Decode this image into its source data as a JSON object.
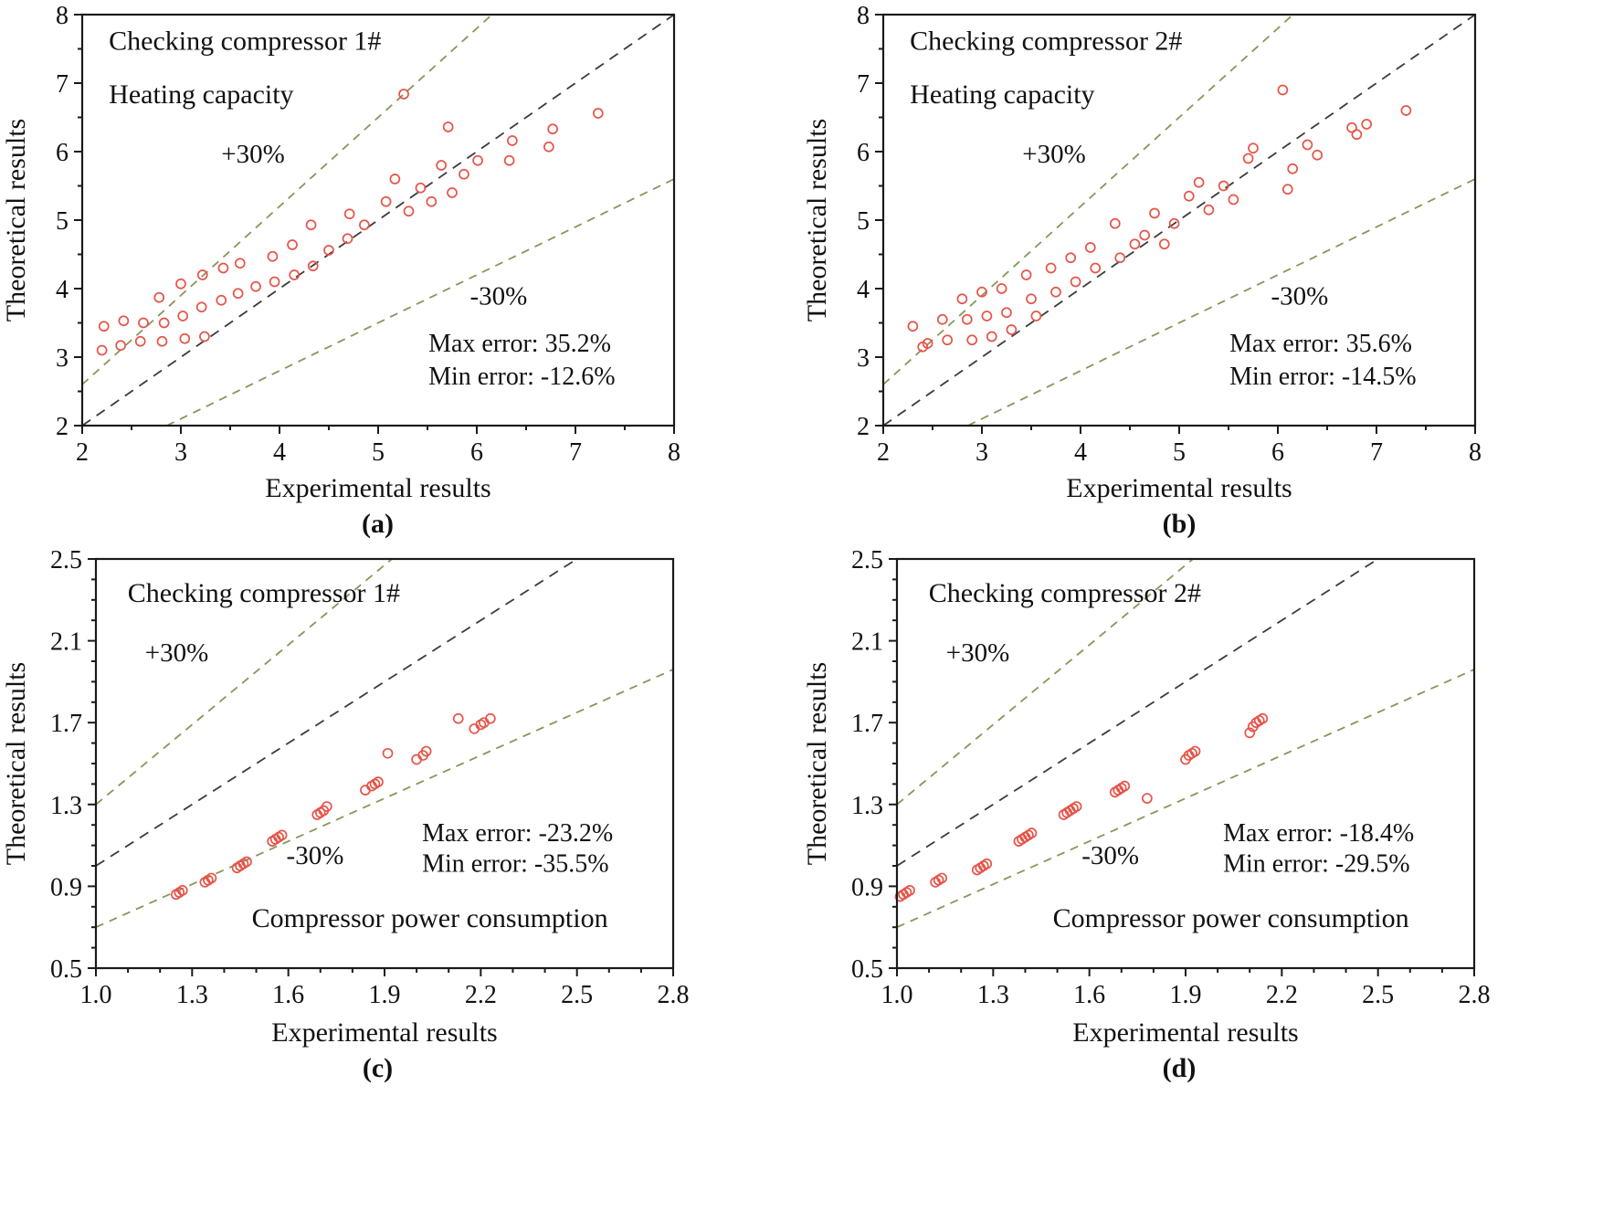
{
  "chart_data": [
    {
      "type": "scatter",
      "panel": "a",
      "caption": "(a)",
      "xlabel": "Experimental results",
      "ylabel": "Theoretical results",
      "xlim": [
        2,
        8
      ],
      "ylim": [
        2,
        8
      ],
      "xticks": [
        2,
        3,
        4,
        5,
        6,
        7,
        8
      ],
      "xtick_labels": [
        "2",
        "3",
        "4",
        "5",
        "6",
        "7",
        "8"
      ],
      "xminor": [
        2.5,
        3.5,
        4.5,
        5.5,
        6.5,
        7.5
      ],
      "yticks": [
        2,
        3,
        4,
        5,
        6,
        7,
        8
      ],
      "ytick_labels": [
        "2",
        "3",
        "4",
        "5",
        "6",
        "7",
        "8"
      ],
      "yminor": [
        2.5,
        3.5,
        4.5,
        5.5,
        6.5,
        7.5
      ],
      "ref_lines": [
        {
          "name": "identity",
          "slope": 1.0,
          "color": "#3b3b3b",
          "dash": "11 8"
        },
        {
          "name": "plus-30-line",
          "slope": 1.3,
          "color": "#86975a",
          "dash": "9 7"
        },
        {
          "name": "minus-30-line",
          "slope": 0.7,
          "color": "#86975a",
          "dash": "9 7"
        }
      ],
      "labels": [
        {
          "name": "title",
          "text": "Checking compressor 1#",
          "fx": 0.045,
          "fy": 0.085,
          "size": 30
        },
        {
          "name": "quantity",
          "text": "Heating capacity",
          "fx": 0.045,
          "fy": 0.215,
          "size": 30
        },
        {
          "name": "plus-30-label",
          "text": "+30%",
          "fx": 0.235,
          "fy": 0.36,
          "size": 29
        },
        {
          "name": "minus-30-label",
          "text": "-30%",
          "fx": 0.655,
          "fy": 0.705,
          "size": 29
        },
        {
          "name": "max-error",
          "text": "Max error:  35.2%",
          "fx": 0.585,
          "fy": 0.82,
          "size": 28
        },
        {
          "name": "min-error",
          "text": "Min error:  -12.6%",
          "fx": 0.585,
          "fy": 0.9,
          "size": 28
        }
      ],
      "style": {
        "marker_color": "#e65449",
        "axis_color": "#1a1a1a",
        "text_color": "#111111"
      },
      "points": [
        [
          2.2,
          3.1
        ],
        [
          2.22,
          3.45
        ],
        [
          2.39,
          3.17
        ],
        [
          2.42,
          3.53
        ],
        [
          2.59,
          3.23
        ],
        [
          2.62,
          3.5
        ],
        [
          2.78,
          3.87
        ],
        [
          2.81,
          3.23
        ],
        [
          2.83,
          3.5
        ],
        [
          3.0,
          4.07
        ],
        [
          3.02,
          3.6
        ],
        [
          3.04,
          3.27
        ],
        [
          3.21,
          3.73
        ],
        [
          3.22,
          4.2
        ],
        [
          3.24,
          3.3
        ],
        [
          3.41,
          3.83
        ],
        [
          3.43,
          4.3
        ],
        [
          3.58,
          3.93
        ],
        [
          3.6,
          4.37
        ],
        [
          3.76,
          4.03
        ],
        [
          3.93,
          4.47
        ],
        [
          3.95,
          4.1
        ],
        [
          4.13,
          4.64
        ],
        [
          4.15,
          4.2
        ],
        [
          4.32,
          4.93
        ],
        [
          4.34,
          4.33
        ],
        [
          4.5,
          4.56
        ],
        [
          4.69,
          4.73
        ],
        [
          4.71,
          5.09
        ],
        [
          4.86,
          4.93
        ],
        [
          5.08,
          5.27
        ],
        [
          5.17,
          5.6
        ],
        [
          5.26,
          6.84
        ],
        [
          5.31,
          5.13
        ],
        [
          5.43,
          5.47
        ],
        [
          5.54,
          5.27
        ],
        [
          5.64,
          5.8
        ],
        [
          5.71,
          6.36
        ],
        [
          5.75,
          5.4
        ],
        [
          5.87,
          5.67
        ],
        [
          6.01,
          5.87
        ],
        [
          6.33,
          5.87
        ],
        [
          6.36,
          6.16
        ],
        [
          6.73,
          6.07
        ],
        [
          6.77,
          6.33
        ],
        [
          7.23,
          6.56
        ]
      ]
    },
    {
      "type": "scatter",
      "panel": "b",
      "caption": "(b)",
      "xlabel": "Experimental results",
      "ylabel": "Theoretical results",
      "xlim": [
        2,
        8
      ],
      "ylim": [
        2,
        8
      ],
      "xticks": [
        2,
        3,
        4,
        5,
        6,
        7,
        8
      ],
      "xtick_labels": [
        "2",
        "3",
        "4",
        "5",
        "6",
        "7",
        "8"
      ],
      "xminor": [
        2.5,
        3.5,
        4.5,
        5.5,
        6.5,
        7.5
      ],
      "yticks": [
        2,
        3,
        4,
        5,
        6,
        7,
        8
      ],
      "ytick_labels": [
        "2",
        "3",
        "4",
        "5",
        "6",
        "7",
        "8"
      ],
      "yminor": [
        2.5,
        3.5,
        4.5,
        5.5,
        6.5,
        7.5
      ],
      "ref_lines": [
        {
          "name": "identity",
          "slope": 1.0,
          "color": "#3b3b3b",
          "dash": "11 8"
        },
        {
          "name": "plus-30-line",
          "slope": 1.3,
          "color": "#86975a",
          "dash": "9 7"
        },
        {
          "name": "minus-30-line",
          "slope": 0.7,
          "color": "#86975a",
          "dash": "9 7"
        }
      ],
      "labels": [
        {
          "name": "title",
          "text": "Checking compressor 2#",
          "fx": 0.045,
          "fy": 0.085,
          "size": 30
        },
        {
          "name": "quantity",
          "text": "Heating capacity",
          "fx": 0.045,
          "fy": 0.215,
          "size": 30
        },
        {
          "name": "plus-30-label",
          "text": "+30%",
          "fx": 0.235,
          "fy": 0.36,
          "size": 29
        },
        {
          "name": "minus-30-label",
          "text": "-30%",
          "fx": 0.655,
          "fy": 0.705,
          "size": 29
        },
        {
          "name": "max-error",
          "text": "Max error:  35.6%",
          "fx": 0.585,
          "fy": 0.82,
          "size": 28
        },
        {
          "name": "min-error",
          "text": "Min error:  -14.5%",
          "fx": 0.585,
          "fy": 0.9,
          "size": 28
        }
      ],
      "style": {
        "marker_color": "#e65449",
        "axis_color": "#1a1a1a",
        "text_color": "#111111"
      },
      "points": [
        [
          2.3,
          3.45
        ],
        [
          2.4,
          3.15
        ],
        [
          2.45,
          3.2
        ],
        [
          2.6,
          3.55
        ],
        [
          2.65,
          3.25
        ],
        [
          2.8,
          3.85
        ],
        [
          2.85,
          3.55
        ],
        [
          2.9,
          3.25
        ],
        [
          3.0,
          3.95
        ],
        [
          3.05,
          3.6
        ],
        [
          3.1,
          3.3
        ],
        [
          3.2,
          4.0
        ],
        [
          3.25,
          3.65
        ],
        [
          3.3,
          3.4
        ],
        [
          3.45,
          4.2
        ],
        [
          3.5,
          3.85
        ],
        [
          3.55,
          3.6
        ],
        [
          3.7,
          4.3
        ],
        [
          3.75,
          3.95
        ],
        [
          3.9,
          4.45
        ],
        [
          3.95,
          4.1
        ],
        [
          4.1,
          4.6
        ],
        [
          4.15,
          4.3
        ],
        [
          4.35,
          4.95
        ],
        [
          4.4,
          4.45
        ],
        [
          4.55,
          4.65
        ],
        [
          4.65,
          4.78
        ],
        [
          4.75,
          5.1
        ],
        [
          4.85,
          4.65
        ],
        [
          4.95,
          4.95
        ],
        [
          5.1,
          5.35
        ],
        [
          5.2,
          5.55
        ],
        [
          5.3,
          5.15
        ],
        [
          5.45,
          5.5
        ],
        [
          5.55,
          5.3
        ],
        [
          5.7,
          5.9
        ],
        [
          5.75,
          6.05
        ],
        [
          6.05,
          6.9
        ],
        [
          6.1,
          5.45
        ],
        [
          6.15,
          5.75
        ],
        [
          6.3,
          6.1
        ],
        [
          6.4,
          5.95
        ],
        [
          6.75,
          6.35
        ],
        [
          6.8,
          6.25
        ],
        [
          6.9,
          6.4
        ],
        [
          7.3,
          6.6
        ]
      ]
    },
    {
      "type": "scatter",
      "panel": "c",
      "caption": "(c)",
      "xlabel": "Experimental results",
      "ylabel": "Theoretical results",
      "xlim": [
        1.0,
        2.8
      ],
      "ylim": [
        0.5,
        2.5
      ],
      "xticks": [
        1.0,
        1.3,
        1.6,
        1.9,
        2.2,
        2.5,
        2.8
      ],
      "xtick_labels": [
        "1.0",
        "1.3",
        "1.6",
        "1.9",
        "2.2",
        "2.5",
        "2.8"
      ],
      "xminor": [
        1.1,
        1.2,
        1.4,
        1.5,
        1.7,
        1.8,
        2.0,
        2.1,
        2.3,
        2.4,
        2.6,
        2.7
      ],
      "yticks": [
        0.5,
        0.9,
        1.3,
        1.7,
        2.1,
        2.5
      ],
      "ytick_labels": [
        "0.5",
        "0.9",
        "1.3",
        "1.7",
        "2.1",
        "2.5"
      ],
      "yminor": [
        0.6,
        0.7,
        0.8,
        1.0,
        1.1,
        1.2,
        1.4,
        1.5,
        1.6,
        1.8,
        1.9,
        2.0,
        2.2,
        2.3,
        2.4
      ],
      "ref_lines": [
        {
          "name": "identity",
          "slope": 1.0,
          "color": "#3b3b3b",
          "dash": "11 8"
        },
        {
          "name": "plus-30-line",
          "slope": 1.3,
          "color": "#86975a",
          "dash": "9 7"
        },
        {
          "name": "minus-30-line",
          "slope": 0.7,
          "color": "#86975a",
          "dash": "9 7"
        }
      ],
      "labels": [
        {
          "name": "title",
          "text": "Checking compressor 1#",
          "fx": 0.055,
          "fy": 0.105,
          "size": 30
        },
        {
          "name": "plus-30-label",
          "text": "+30%",
          "fx": 0.085,
          "fy": 0.25,
          "size": 29
        },
        {
          "name": "minus-30-label",
          "text": "-30%",
          "fx": 0.33,
          "fy": 0.745,
          "size": 29
        },
        {
          "name": "max-error",
          "text": "Max error:  -23.2%",
          "fx": 0.565,
          "fy": 0.69,
          "size": 28
        },
        {
          "name": "min-error",
          "text": "Min error:  -35.5%",
          "fx": 0.565,
          "fy": 0.765,
          "size": 28
        },
        {
          "name": "quantity",
          "text": "Compressor power consumption",
          "fx": 0.27,
          "fy": 0.9,
          "size": 30
        }
      ],
      "style": {
        "marker_color": "#e65449",
        "axis_color": "#1a1a1a",
        "text_color": "#111111"
      },
      "points": [
        [
          1.25,
          0.86
        ],
        [
          1.26,
          0.87
        ],
        [
          1.27,
          0.88
        ],
        [
          1.34,
          0.92
        ],
        [
          1.35,
          0.93
        ],
        [
          1.36,
          0.94
        ],
        [
          1.44,
          0.99
        ],
        [
          1.45,
          1.0
        ],
        [
          1.46,
          1.01
        ],
        [
          1.47,
          1.02
        ],
        [
          1.55,
          1.12
        ],
        [
          1.56,
          1.13
        ],
        [
          1.57,
          1.14
        ],
        [
          1.58,
          1.15
        ],
        [
          1.69,
          1.25
        ],
        [
          1.7,
          1.26
        ],
        [
          1.71,
          1.27
        ],
        [
          1.72,
          1.29
        ],
        [
          1.84,
          1.37
        ],
        [
          1.86,
          1.39
        ],
        [
          1.87,
          1.4
        ],
        [
          1.88,
          1.41
        ],
        [
          1.91,
          1.55
        ],
        [
          2.0,
          1.52
        ],
        [
          2.02,
          1.54
        ],
        [
          2.03,
          1.56
        ],
        [
          2.13,
          1.72
        ],
        [
          2.18,
          1.67
        ],
        [
          2.2,
          1.69
        ],
        [
          2.21,
          1.7
        ],
        [
          2.23,
          1.72
        ]
      ]
    },
    {
      "type": "scatter",
      "panel": "d",
      "caption": "(d)",
      "xlabel": "Experimental results",
      "ylabel": "Theoretical results",
      "xlim": [
        1.0,
        2.8
      ],
      "ylim": [
        0.5,
        2.5
      ],
      "xticks": [
        1.0,
        1.3,
        1.6,
        1.9,
        2.2,
        2.5,
        2.8
      ],
      "xtick_labels": [
        "1.0",
        "1.3",
        "1.6",
        "1.9",
        "2.2",
        "2.5",
        "2.8"
      ],
      "xminor": [
        1.1,
        1.2,
        1.4,
        1.5,
        1.7,
        1.8,
        2.0,
        2.1,
        2.3,
        2.4,
        2.6,
        2.7
      ],
      "yticks": [
        0.5,
        0.9,
        1.3,
        1.7,
        2.1,
        2.5
      ],
      "ytick_labels": [
        "0.5",
        "0.9",
        "1.3",
        "1.7",
        "2.1",
        "2.5"
      ],
      "yminor": [
        0.6,
        0.7,
        0.8,
        1.0,
        1.1,
        1.2,
        1.4,
        1.5,
        1.6,
        1.8,
        1.9,
        2.0,
        2.2,
        2.3,
        2.4
      ],
      "ref_lines": [
        {
          "name": "identity",
          "slope": 1.0,
          "color": "#3b3b3b",
          "dash": "11 8"
        },
        {
          "name": "plus-30-line",
          "slope": 1.3,
          "color": "#86975a",
          "dash": "9 7"
        },
        {
          "name": "minus-30-line",
          "slope": 0.7,
          "color": "#86975a",
          "dash": "9 7"
        }
      ],
      "labels": [
        {
          "name": "title",
          "text": "Checking compressor 2#",
          "fx": 0.055,
          "fy": 0.105,
          "size": 30
        },
        {
          "name": "plus-30-label",
          "text": "+30%",
          "fx": 0.085,
          "fy": 0.25,
          "size": 29
        },
        {
          "name": "minus-30-label",
          "text": "-30%",
          "fx": 0.32,
          "fy": 0.745,
          "size": 29
        },
        {
          "name": "max-error",
          "text": "Max error:  -18.4%",
          "fx": 0.565,
          "fy": 0.69,
          "size": 28
        },
        {
          "name": "min-error",
          "text": "Min error:  -29.5%",
          "fx": 0.565,
          "fy": 0.765,
          "size": 28
        },
        {
          "name": "quantity",
          "text": "Compressor power consumption",
          "fx": 0.27,
          "fy": 0.9,
          "size": 30
        }
      ],
      "style": {
        "marker_color": "#e65449",
        "axis_color": "#1a1a1a",
        "text_color": "#111111"
      },
      "points": [
        [
          1.01,
          0.85
        ],
        [
          1.02,
          0.86
        ],
        [
          1.03,
          0.87
        ],
        [
          1.04,
          0.88
        ],
        [
          1.12,
          0.92
        ],
        [
          1.13,
          0.93
        ],
        [
          1.14,
          0.94
        ],
        [
          1.25,
          0.98
        ],
        [
          1.26,
          0.99
        ],
        [
          1.27,
          1.0
        ],
        [
          1.28,
          1.01
        ],
        [
          1.38,
          1.12
        ],
        [
          1.39,
          1.13
        ],
        [
          1.4,
          1.14
        ],
        [
          1.41,
          1.15
        ],
        [
          1.42,
          1.16
        ],
        [
          1.52,
          1.25
        ],
        [
          1.53,
          1.26
        ],
        [
          1.54,
          1.27
        ],
        [
          1.55,
          1.28
        ],
        [
          1.56,
          1.29
        ],
        [
          1.68,
          1.36
        ],
        [
          1.69,
          1.37
        ],
        [
          1.7,
          1.38
        ],
        [
          1.71,
          1.39
        ],
        [
          1.78,
          1.33
        ],
        [
          1.9,
          1.52
        ],
        [
          1.91,
          1.54
        ],
        [
          1.92,
          1.55
        ],
        [
          1.93,
          1.56
        ],
        [
          2.1,
          1.65
        ],
        [
          2.11,
          1.68
        ],
        [
          2.12,
          1.7
        ],
        [
          2.13,
          1.71
        ],
        [
          2.14,
          1.72
        ]
      ]
    }
  ]
}
